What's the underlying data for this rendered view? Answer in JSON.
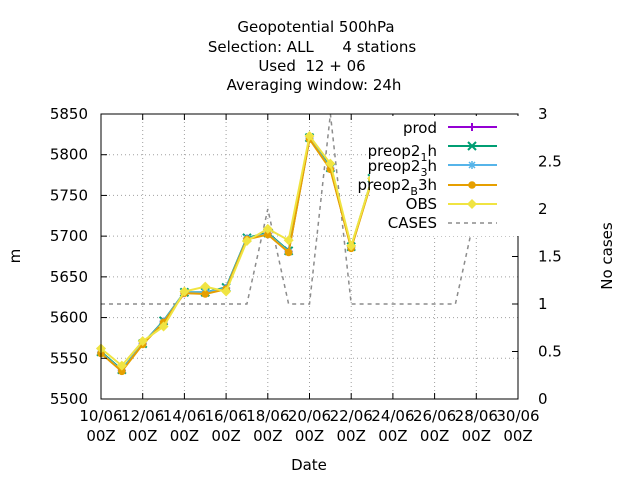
{
  "chart_data": {
    "type": "line",
    "title_lines": [
      "Geopotential 500hPa",
      "Selection: ALL      4 stations",
      "Used  12 + 06",
      "Averaging window: 24h"
    ],
    "xlabel": "Date",
    "ylabel": "m",
    "y2label": "No cases",
    "ylim": [
      5500,
      5850
    ],
    "y2lim": [
      0,
      3
    ],
    "yticks": [
      5500,
      5550,
      5600,
      5650,
      5700,
      5750,
      5800,
      5850
    ],
    "y2ticks": [
      "0",
      "0.5",
      "1",
      "1.5",
      "2",
      "2.5",
      "3"
    ],
    "xticks": [
      {
        "day": 10,
        "label1": "10/06",
        "label2": "00Z"
      },
      {
        "day": 12,
        "label1": "12/06",
        "label2": "00Z"
      },
      {
        "day": 14,
        "label1": "14/06",
        "label2": "00Z"
      },
      {
        "day": 16,
        "label1": "16/06",
        "label2": "00Z"
      },
      {
        "day": 18,
        "label1": "18/06",
        "label2": "00Z"
      },
      {
        "day": 20,
        "label1": "20/06",
        "label2": "00Z"
      },
      {
        "day": 22,
        "label1": "22/06",
        "label2": "00Z"
      },
      {
        "day": 24,
        "label1": "24/06",
        "label2": "00Z"
      },
      {
        "day": 26,
        "label1": "26/06",
        "label2": "00Z"
      },
      {
        "day": 28,
        "label1": "28/06",
        "label2": "00Z"
      },
      {
        "day": 30,
        "label1": "30/06",
        "label2": "00Z"
      }
    ],
    "xlim": [
      10,
      30
    ],
    "grid": true,
    "legend_position": "top-right",
    "x": [
      10,
      11,
      12,
      13,
      14,
      15,
      16,
      17,
      18,
      19,
      20,
      21,
      22,
      23,
      24,
      25,
      26,
      27,
      28,
      29
    ],
    "series": [
      {
        "name": "prod",
        "color": "#9400d3",
        "marker": "plus",
        "values": [
          5557,
          5535,
          5568,
          5595,
          5630,
          5630,
          5636,
          5697,
          5703,
          5681,
          5820,
          5783,
          5686,
          5770,
          5836,
          5828,
          5794,
          5769,
          5797,
          5790
        ]
      },
      {
        "name": "preop2_1h",
        "color": "#009e73",
        "marker": "cross",
        "values": [
          5558,
          5536,
          5568,
          5596,
          5631,
          5631,
          5637,
          5698,
          5704,
          5682,
          5821,
          5784,
          5687,
          5771,
          5837,
          5829,
          5795,
          5770,
          5798,
          5791
        ]
      },
      {
        "name": "preop2_3h",
        "color": "#56b4e9",
        "marker": "star",
        "values": [
          5557,
          5535,
          5568,
          5595,
          5631,
          5631,
          5636,
          5697,
          5703,
          5681,
          5820,
          5783,
          5686,
          5770,
          5836,
          5828,
          5794,
          5769,
          5797,
          5790
        ]
      },
      {
        "name": "preop2_B 3h",
        "color": "#e69f00",
        "marker": "dot",
        "values": [
          5556,
          5534,
          5567,
          5594,
          5630,
          5629,
          5635,
          5696,
          5702,
          5680,
          5819,
          5782,
          5685,
          5769,
          5835,
          5827,
          5793,
          5768,
          5796,
          5789
        ]
      },
      {
        "name": "OBS",
        "color": "#f0e442",
        "marker": "diamond",
        "values": [
          5562,
          5541,
          5571,
          5589,
          5632,
          5638,
          5632,
          5694,
          5709,
          5695,
          5823,
          5789,
          5688,
          5771,
          5840,
          5832,
          5800,
          5772,
          5799,
          5795
        ]
      }
    ],
    "cases": {
      "name": "CASES",
      "color": "#8c8c8c",
      "axis": "y2",
      "x": [
        10,
        11,
        12,
        13,
        14,
        15,
        16,
        16.5,
        17,
        17.5,
        18,
        18.5,
        19,
        19.5,
        20,
        20.5,
        21,
        21.5,
        22,
        22.5,
        23,
        24,
        25,
        26,
        27,
        27.5,
        28,
        28.5,
        29,
        29.5
      ],
      "values": [
        1,
        1,
        1,
        1,
        1,
        1,
        1,
        1,
        1,
        1.5,
        2,
        1.5,
        1,
        1,
        1,
        2,
        3,
        2,
        1,
        1,
        1,
        1,
        1,
        1,
        1,
        1.5,
        2,
        2,
        2,
        2
      ]
    }
  },
  "legend": {
    "prod": "prod",
    "preop2_1_base": "preop2",
    "preop2_1_sub": "1",
    "preop2_1_suffix": "h",
    "preop2_3_base": "preop2",
    "preop2_3_sub": "3",
    "preop2_3_suffix": "h",
    "preop2_B_base": "preop2",
    "preop2_B_sub": "B",
    "preop2_B_suffix": "3h",
    "obs": "OBS",
    "cases": "CASES"
  }
}
